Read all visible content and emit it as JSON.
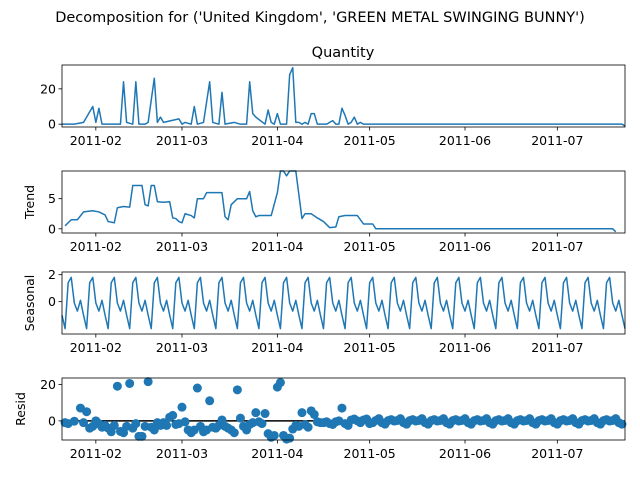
{
  "figure": {
    "suptitle": "Decomposition for ('United Kingdom', 'GREEN METAL SWINGING BUNNY')",
    "color": "#1f77b4"
  },
  "x_ticks": [
    "2011-02",
    "2011-03",
    "2011-04",
    "2011-05",
    "2011-06",
    "2011-07"
  ],
  "chart_data": [
    {
      "type": "line",
      "title": "Quantity",
      "ylabel": "",
      "x_range": [
        "2011-01-21",
        "2011-07-23"
      ],
      "ylim": [
        -1.6,
        33.5
      ],
      "yticks": [
        "0",
        "20"
      ],
      "points": [
        [
          "2011-01-21",
          0
        ],
        [
          "2011-01-25",
          0
        ],
        [
          "2011-01-28",
          1
        ],
        [
          "2011-01-31",
          10
        ],
        [
          "2011-02-01",
          1
        ],
        [
          "2011-02-02",
          9
        ],
        [
          "2011-02-03",
          0
        ],
        [
          "2011-02-09",
          0
        ],
        [
          "2011-02-10",
          24
        ],
        [
          "2011-02-11",
          1
        ],
        [
          "2011-02-13",
          0
        ],
        [
          "2011-02-14",
          24
        ],
        [
          "2011-02-15",
          0
        ],
        [
          "2011-02-17",
          0
        ],
        [
          "2011-02-18",
          1
        ],
        [
          "2011-02-20",
          26
        ],
        [
          "2011-02-21",
          1
        ],
        [
          "2011-02-22",
          4
        ],
        [
          "2011-02-23",
          1
        ],
        [
          "2011-02-28",
          3
        ],
        [
          "2011-03-01",
          0
        ],
        [
          "2011-03-02",
          1
        ],
        [
          "2011-03-04",
          0
        ],
        [
          "2011-03-05",
          10
        ],
        [
          "2011-03-06",
          0
        ],
        [
          "2011-03-08",
          1
        ],
        [
          "2011-03-10",
          24
        ],
        [
          "2011-03-11",
          1
        ],
        [
          "2011-03-13",
          0
        ],
        [
          "2011-03-14",
          18
        ],
        [
          "2011-03-15",
          0
        ],
        [
          "2011-03-18",
          1
        ],
        [
          "2011-03-20",
          0
        ],
        [
          "2011-03-22",
          0
        ],
        [
          "2011-03-23",
          24
        ],
        [
          "2011-03-24",
          6
        ],
        [
          "2011-03-25",
          4
        ],
        [
          "2011-03-28",
          0
        ],
        [
          "2011-03-29",
          8
        ],
        [
          "2011-03-30",
          1
        ],
        [
          "2011-03-31",
          0
        ],
        [
          "2011-04-01",
          6
        ],
        [
          "2011-04-02",
          0
        ],
        [
          "2011-04-04",
          0
        ],
        [
          "2011-04-05",
          28
        ],
        [
          "2011-04-06",
          32
        ],
        [
          "2011-04-07",
          1
        ],
        [
          "2011-04-08",
          1
        ],
        [
          "2011-04-09",
          0
        ],
        [
          "2011-04-10",
          1
        ],
        [
          "2011-04-11",
          0
        ],
        [
          "2011-04-12",
          6
        ],
        [
          "2011-04-13",
          6
        ],
        [
          "2011-04-14",
          0
        ],
        [
          "2011-04-17",
          0
        ],
        [
          "2011-04-18",
          1
        ],
        [
          "2011-04-19",
          2
        ],
        [
          "2011-04-20",
          0
        ],
        [
          "2011-04-21",
          0
        ],
        [
          "2011-04-22",
          9
        ],
        [
          "2011-04-23",
          5
        ],
        [
          "2011-04-24",
          0
        ],
        [
          "2011-04-25",
          1
        ],
        [
          "2011-04-26",
          4
        ],
        [
          "2011-04-27",
          0
        ],
        [
          "2011-04-28",
          1
        ],
        [
          "2011-04-29",
          0
        ],
        [
          "2011-07-21",
          0
        ],
        [
          "2011-07-22",
          0
        ],
        [
          "2011-07-23",
          -1
        ]
      ]
    },
    {
      "type": "line",
      "title": "",
      "ylabel": "Trend",
      "x_range": [
        "2011-01-21",
        "2011-07-23"
      ],
      "ylim": [
        -0.7,
        9.6
      ],
      "yticks": [
        "0",
        "5"
      ],
      "points": [
        [
          "2011-01-22",
          0.5
        ],
        [
          "2011-01-24",
          1.5
        ],
        [
          "2011-01-26",
          1.5
        ],
        [
          "2011-01-28",
          2.8
        ],
        [
          "2011-01-31",
          3
        ],
        [
          "2011-02-02",
          2.8
        ],
        [
          "2011-02-04",
          2.3
        ],
        [
          "2011-02-05",
          1.2
        ],
        [
          "2011-02-07",
          1
        ],
        [
          "2011-02-08",
          3.5
        ],
        [
          "2011-02-10",
          3.7
        ],
        [
          "2011-02-12",
          3.6
        ],
        [
          "2011-02-13",
          7.2
        ],
        [
          "2011-02-15",
          7.2
        ],
        [
          "2011-02-16",
          7.2
        ],
        [
          "2011-02-17",
          4
        ],
        [
          "2011-02-18",
          3.8
        ],
        [
          "2011-02-19",
          7.2
        ],
        [
          "2011-02-20",
          7.2
        ],
        [
          "2011-02-21",
          4.5
        ],
        [
          "2011-02-23",
          4.4
        ],
        [
          "2011-02-25",
          4.5
        ],
        [
          "2011-02-26",
          1.8
        ],
        [
          "2011-02-27",
          1.7
        ],
        [
          "2011-02-28",
          1.2
        ],
        [
          "2011-03-01",
          1
        ],
        [
          "2011-03-02",
          2.5
        ],
        [
          "2011-03-04",
          2.2
        ],
        [
          "2011-03-05",
          1.8
        ],
        [
          "2011-03-06",
          5
        ],
        [
          "2011-03-08",
          5
        ],
        [
          "2011-03-09",
          6
        ],
        [
          "2011-03-11",
          6
        ],
        [
          "2011-03-14",
          6
        ],
        [
          "2011-03-15",
          2
        ],
        [
          "2011-03-16",
          1.5
        ],
        [
          "2011-03-17",
          4
        ],
        [
          "2011-03-19",
          5
        ],
        [
          "2011-03-22",
          5
        ],
        [
          "2011-03-23",
          6.2
        ],
        [
          "2011-03-24",
          3
        ],
        [
          "2011-03-25",
          2
        ],
        [
          "2011-03-26",
          2.2
        ],
        [
          "2011-03-30",
          2.2
        ],
        [
          "2011-04-01",
          6
        ],
        [
          "2011-04-02",
          9.6
        ],
        [
          "2011-04-03",
          9.6
        ],
        [
          "2011-04-04",
          8.8
        ],
        [
          "2011-04-05",
          9.6
        ],
        [
          "2011-04-07",
          9.6
        ],
        [
          "2011-04-09",
          1.7
        ],
        [
          "2011-04-10",
          2.5
        ],
        [
          "2011-04-12",
          2.5
        ],
        [
          "2011-04-14",
          1.8
        ],
        [
          "2011-04-16",
          1.2
        ],
        [
          "2011-04-18",
          0.2
        ],
        [
          "2011-04-20",
          0.3
        ],
        [
          "2011-04-21",
          2
        ],
        [
          "2011-04-23",
          2.2
        ],
        [
          "2011-04-27",
          2.2
        ],
        [
          "2011-04-29",
          0.8
        ],
        [
          "2011-05-02",
          0.8
        ],
        [
          "2011-05-03",
          0
        ],
        [
          "2011-07-19",
          0
        ],
        [
          "2011-07-20",
          -0.5
        ]
      ]
    },
    {
      "type": "line",
      "title": "",
      "ylabel": "Seasonal",
      "x_range": [
        "2011-01-21",
        "2011-07-23"
      ],
      "ylim": [
        -2.4,
        2.2
      ],
      "yticks": [
        "0",
        "2"
      ],
      "period_days": 7,
      "cycle_values": [
        -1.0,
        -2.0,
        1.4,
        1.8,
        -0.1,
        -0.7,
        0.1
      ],
      "series_start": "2011-01-21",
      "series_end": "2011-07-23"
    },
    {
      "type": "scatter",
      "title": "",
      "ylabel": "Resid",
      "x_range": [
        "2011-01-21",
        "2011-07-23"
      ],
      "ylim": [
        -10.5,
        23.5
      ],
      "yticks": [
        "0",
        "20"
      ],
      "baseline": 0,
      "points": [
        [
          "2011-01-22",
          -1
        ],
        [
          "2011-01-23",
          -1.5
        ],
        [
          "2011-01-25",
          -0.2
        ],
        [
          "2011-01-27",
          7
        ],
        [
          "2011-01-28",
          -1
        ],
        [
          "2011-01-29",
          5
        ],
        [
          "2011-01-30",
          -4
        ],
        [
          "2011-01-31",
          -3
        ],
        [
          "2011-02-01",
          0
        ],
        [
          "2011-02-02",
          -1.5
        ],
        [
          "2011-02-03",
          -3.5
        ],
        [
          "2011-02-04",
          -2.5
        ],
        [
          "2011-02-05",
          -4
        ],
        [
          "2011-02-06",
          -6
        ],
        [
          "2011-02-07",
          -2.5
        ],
        [
          "2011-02-08",
          19
        ],
        [
          "2011-02-09",
          -5.8
        ],
        [
          "2011-02-10",
          -6.5
        ],
        [
          "2011-02-11",
          -3
        ],
        [
          "2011-02-12",
          20.5
        ],
        [
          "2011-02-13",
          -4
        ],
        [
          "2011-02-14",
          -1.5
        ],
        [
          "2011-02-15",
          -8.5
        ],
        [
          "2011-02-16",
          -8.5
        ],
        [
          "2011-02-17",
          -3
        ],
        [
          "2011-02-18",
          21.5
        ],
        [
          "2011-02-19",
          -3.5
        ],
        [
          "2011-02-20",
          -5
        ],
        [
          "2011-02-21",
          -1
        ],
        [
          "2011-02-22",
          -2.5
        ],
        [
          "2011-02-23",
          -1
        ],
        [
          "2011-02-24",
          -2.5
        ],
        [
          "2011-02-25",
          2
        ],
        [
          "2011-02-26",
          3
        ],
        [
          "2011-02-27",
          -2
        ],
        [
          "2011-02-28",
          -1.5
        ],
        [
          "2011-03-01",
          7.5
        ],
        [
          "2011-03-02",
          -0.5
        ],
        [
          "2011-03-03",
          -5
        ],
        [
          "2011-03-04",
          -6.5
        ],
        [
          "2011-03-05",
          -5
        ],
        [
          "2011-03-06",
          18
        ],
        [
          "2011-03-07",
          -3
        ],
        [
          "2011-03-08",
          -6
        ],
        [
          "2011-03-09",
          -5
        ],
        [
          "2011-03-10",
          11
        ],
        [
          "2011-03-11",
          -3.5
        ],
        [
          "2011-03-12",
          -4
        ],
        [
          "2011-03-13",
          -2.5
        ],
        [
          "2011-03-14",
          0.5
        ],
        [
          "2011-03-15",
          -3
        ],
        [
          "2011-03-16",
          -4
        ],
        [
          "2011-03-17",
          -5
        ],
        [
          "2011-03-18",
          -6.5
        ],
        [
          "2011-03-19",
          17
        ],
        [
          "2011-03-20",
          1.5
        ],
        [
          "2011-03-21",
          -3
        ],
        [
          "2011-03-22",
          -5
        ],
        [
          "2011-03-23",
          -2
        ],
        [
          "2011-03-24",
          -1
        ],
        [
          "2011-03-25",
          4.5
        ],
        [
          "2011-03-26",
          -0.5
        ],
        [
          "2011-03-27",
          -1.5
        ],
        [
          "2011-03-28",
          4
        ],
        [
          "2011-03-29",
          -7
        ],
        [
          "2011-03-30",
          -9
        ],
        [
          "2011-03-31",
          -8
        ],
        [
          "2011-04-01",
          18.5
        ],
        [
          "2011-04-02",
          21
        ],
        [
          "2011-04-03",
          -8
        ],
        [
          "2011-04-04",
          -10
        ],
        [
          "2011-04-05",
          -9.5
        ],
        [
          "2011-04-06",
          -4.5
        ],
        [
          "2011-04-07",
          -2.5
        ],
        [
          "2011-04-08",
          -3
        ],
        [
          "2011-04-09",
          4.5
        ],
        [
          "2011-04-10",
          -2
        ],
        [
          "2011-04-11",
          -3.5
        ],
        [
          "2011-04-12",
          5.5
        ],
        [
          "2011-04-13",
          3.5
        ],
        [
          "2011-04-14",
          -0.5
        ],
        [
          "2011-04-15",
          -1
        ],
        [
          "2011-04-16",
          -1
        ],
        [
          "2011-04-17",
          -0.5
        ],
        [
          "2011-04-18",
          -1.5
        ],
        [
          "2011-04-19",
          -2
        ],
        [
          "2011-04-20",
          -0.5
        ],
        [
          "2011-04-21",
          0
        ],
        [
          "2011-04-22",
          7
        ],
        [
          "2011-04-23",
          -1.5
        ],
        [
          "2011-04-24",
          -2.5
        ],
        [
          "2011-04-25",
          0.5
        ],
        [
          "2011-04-26",
          1
        ],
        [
          "2011-04-27",
          0
        ],
        [
          "2011-04-28",
          -1
        ],
        [
          "2011-04-29",
          0.5
        ],
        [
          "2011-04-30",
          1
        ],
        [
          "2011-05-01",
          -1.5
        ],
        [
          "2011-05-02",
          -1
        ]
      ],
      "tail_start": "2011-05-03",
      "tail_end": "2011-07-22",
      "tail_period_days": 7,
      "tail_cycle_values": [
        0.2,
        1.2,
        -1.0,
        -1.8,
        0.1,
        0.7,
        -0.1
      ]
    }
  ]
}
